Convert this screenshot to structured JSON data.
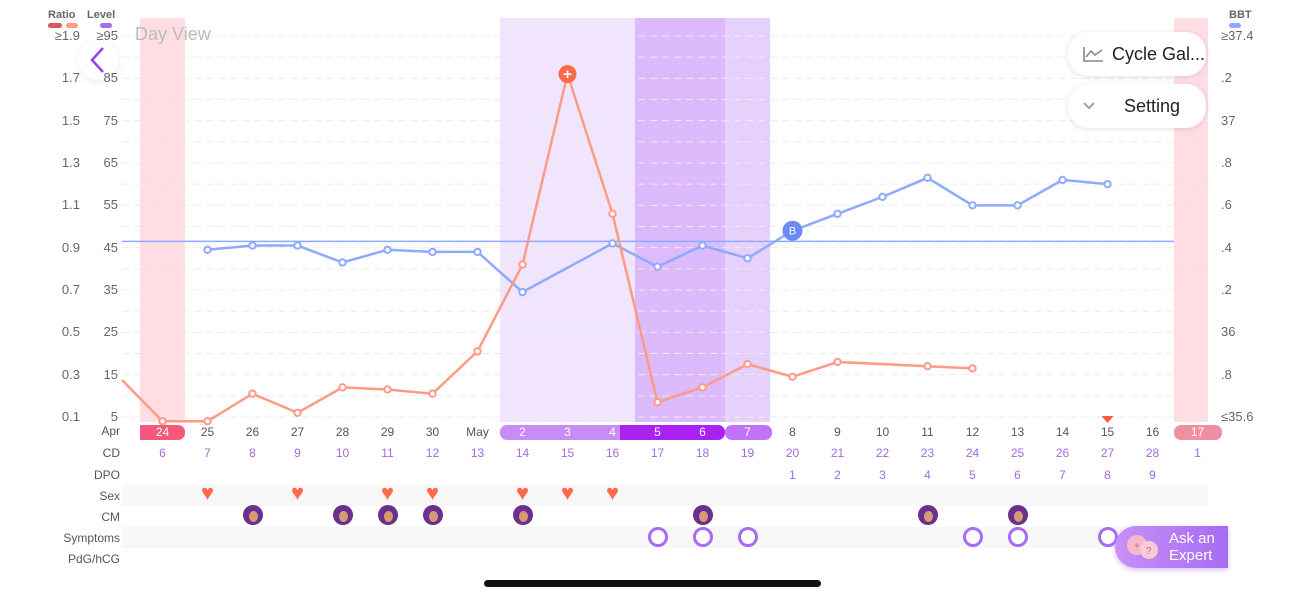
{
  "header": {
    "ratio_label": "Ratio",
    "level_label": "Level",
    "bbt_label": "BBT",
    "view_title": "Day View"
  },
  "colors": {
    "ratio_dark": "#d9575c",
    "ratio_light": "#ff9a86",
    "level": "#a66bf7",
    "bbt": "#8eaaff",
    "ratio_line": "#ff9a86",
    "bbt_line": "#8eaaff",
    "period": "#ffdde3",
    "fertile_light": "#f1e5fd",
    "fertile_mid": "#e6d0fc",
    "peak": "#dcbafc",
    "heart": "#ff6a4d",
    "cm": "#6a2f8f"
  },
  "axes": {
    "ratio_ticks": [
      "≥1.9",
      "1.7",
      "1.5",
      "1.3",
      "1.1",
      "0.9",
      "0.7",
      "0.5",
      "0.3",
      "0.1"
    ],
    "level_ticks": [
      "≥95",
      "85",
      "75",
      "65",
      "55",
      "45",
      "35",
      "25",
      "15",
      "5"
    ],
    "bbt_ticks": [
      "≥37.4",
      ".2",
      "37",
      ".8",
      ".6",
      ".4",
      ".2",
      "36",
      ".8",
      "≤35.6"
    ]
  },
  "buttons": {
    "back": "back",
    "cycle_gallery": "Cycle Gal...",
    "setting": "Setting",
    "ask_expert_line1": "Ask an",
    "ask_expert_line2": "Expert"
  },
  "rows": {
    "month": "Apr",
    "cd": "CD",
    "dpo": "DPO",
    "sex": "Sex",
    "cm": "CM",
    "symptoms": "Symptoms",
    "pdg": "PdG/hCG"
  },
  "days": [
    "24",
    "25",
    "26",
    "27",
    "28",
    "29",
    "30",
    "May",
    "2",
    "3",
    "4",
    "5",
    "6",
    "7",
    "8",
    "9",
    "10",
    "11",
    "12",
    "13",
    "14",
    "15",
    "16",
    "17"
  ],
  "day_styles": [
    "period",
    "",
    "",
    "",
    "",
    "",
    "",
    "",
    "fertile",
    "fertile",
    "fertile",
    "peak",
    "peak",
    "fertile2",
    "",
    "",
    "",
    "",
    "",
    "",
    "",
    "",
    "",
    "period2"
  ],
  "cd": [
    "6",
    "7",
    "8",
    "9",
    "10",
    "11",
    "12",
    "13",
    "14",
    "15",
    "16",
    "17",
    "18",
    "19",
    "20",
    "21",
    "22",
    "23",
    "24",
    "25",
    "26",
    "27",
    "28",
    "1"
  ],
  "dpo": [
    "",
    "",
    "",
    "",
    "",
    "",
    "",
    "",
    "",
    "",
    "",
    "",
    "",
    "",
    "1",
    "2",
    "3",
    "4",
    "5",
    "6",
    "7",
    "8",
    "9",
    ""
  ],
  "sex_days": [
    1,
    3,
    5,
    6,
    8,
    9,
    10
  ],
  "cm_days": [
    2,
    4,
    5,
    6,
    8,
    12,
    17,
    19
  ],
  "symptom_days": [
    11,
    12,
    13,
    18,
    19,
    21
  ],
  "marker_day": 21,
  "chart_data": {
    "type": "line",
    "x": [
      "Apr 24",
      "25",
      "26",
      "27",
      "28",
      "29",
      "30",
      "May 1",
      "2",
      "3",
      "4",
      "5",
      "6",
      "7",
      "8",
      "9",
      "10",
      "11",
      "12",
      "13",
      "14",
      "15",
      "16",
      "17"
    ],
    "ratio_ylim": [
      0.1,
      1.9
    ],
    "bbt_ylim": [
      35.6,
      37.4
    ],
    "bbt_coverline": 36.43,
    "series": [
      {
        "name": "Ratio",
        "axis": "ratio",
        "values": [
          0.08,
          0.08,
          0.21,
          0.12,
          0.24,
          0.23,
          0.21,
          0.41,
          0.82,
          1.72,
          1.06,
          0.17,
          0.24,
          0.35,
          0.29,
          0.36,
          null,
          0.34,
          0.33,
          null,
          null,
          null,
          null,
          null
        ],
        "peak_index": 9
      },
      {
        "name": "BBT",
        "axis": "bbt",
        "values": [
          null,
          36.39,
          36.41,
          36.41,
          36.33,
          36.39,
          36.38,
          36.38,
          36.19,
          null,
          36.42,
          36.31,
          36.41,
          36.35,
          36.48,
          36.56,
          36.64,
          36.73,
          36.6,
          36.6,
          36.72,
          36.7,
          null,
          null
        ],
        "marker_index": 14,
        "marker_label": "B"
      }
    ],
    "grid": true
  }
}
